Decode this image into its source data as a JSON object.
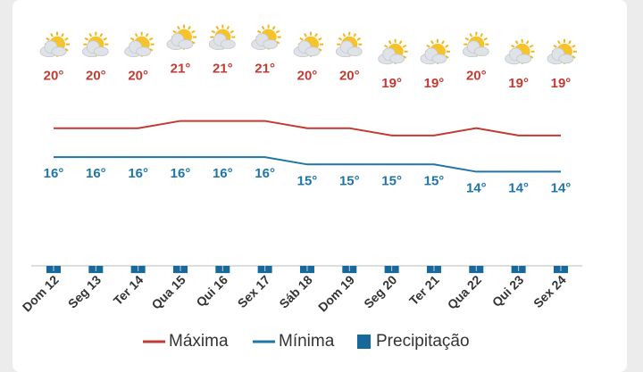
{
  "chart_data": {
    "type": "line",
    "categories": [
      "Dom 12",
      "Seg 13",
      "Ter 14",
      "Qua 15",
      "Qui 16",
      "Sex 17",
      "Sáb 18",
      "Dom 19",
      "Seg 20",
      "Ter 21",
      "Qua 22",
      "Qui 23",
      "Sex 24"
    ],
    "series": [
      {
        "name": "Máxima",
        "color": "#c23b32",
        "values": [
          20,
          20,
          20,
          21,
          21,
          21,
          20,
          20,
          19,
          19,
          20,
          19,
          19
        ],
        "value_labels": [
          "20°",
          "20°",
          "20°",
          "21°",
          "21°",
          "21°",
          "20°",
          "20°",
          "19°",
          "19°",
          "20°",
          "19°",
          "19°"
        ]
      },
      {
        "name": "Mínima",
        "color": "#1f76a6",
        "values": [
          16,
          16,
          16,
          16,
          16,
          16,
          15,
          15,
          15,
          15,
          14,
          14,
          14
        ],
        "value_labels": [
          "16°",
          "16°",
          "16°",
          "16°",
          "16°",
          "16°",
          "15°",
          "15°",
          "15°",
          "15°",
          "14°",
          "14°",
          "14°"
        ]
      },
      {
        "name": "Precipitação",
        "color": "#17699b",
        "values": [
          0,
          0,
          0,
          0,
          0,
          0,
          0,
          0,
          0,
          0,
          0,
          0,
          0
        ]
      }
    ],
    "ylim": [
      1,
      34
    ]
  }
}
